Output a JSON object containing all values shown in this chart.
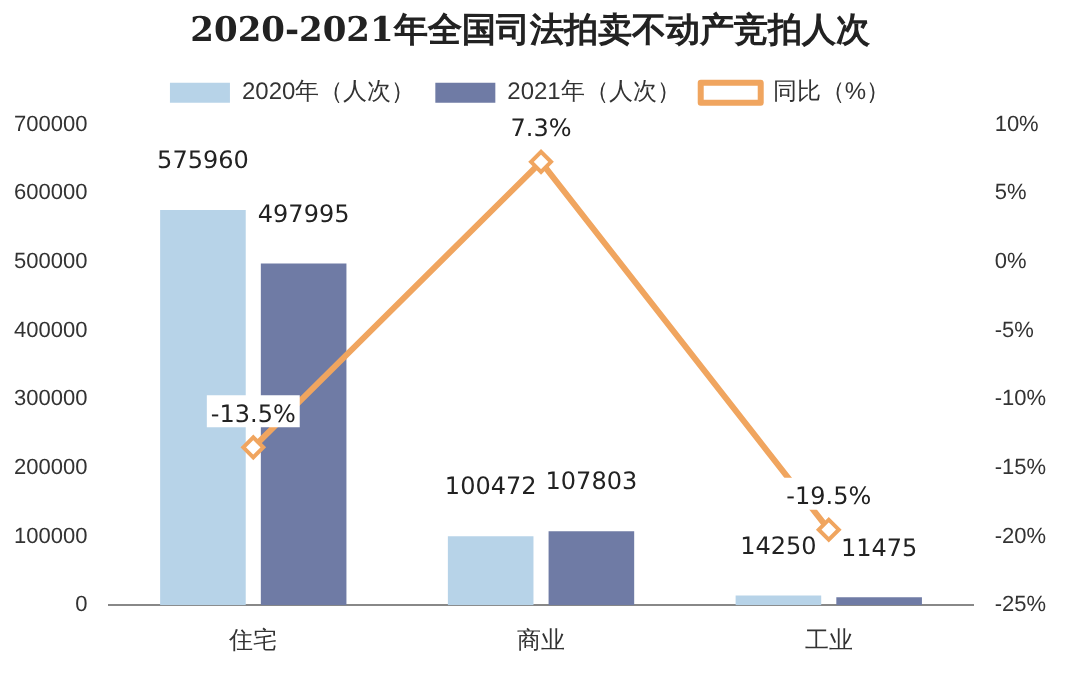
{
  "chart_data": {
    "type": "bar",
    "title": "2020-2021年全国司法拍卖不动产竞拍人次",
    "categories": [
      "住宅",
      "商业",
      "工业"
    ],
    "series": [
      {
        "name": "2020年（人次）",
        "color": "#b7d3e8",
        "values": [
          575960,
          100472,
          14250
        ],
        "value_labels": [
          "575960",
          "100472",
          "14250"
        ]
      },
      {
        "name": "2021年（人次）",
        "color": "#6f7ba5",
        "values": [
          497995,
          107803,
          11475
        ],
        "value_labels": [
          "497995",
          "107803",
          "11475"
        ]
      },
      {
        "name": "同比（%）",
        "type": "line",
        "axis": "y2",
        "color": "#f0a55f",
        "marker": "diamond",
        "values": [
          -13.5,
          7.3,
          -19.5
        ],
        "value_labels": [
          "-13.5%",
          "7.3%",
          "-19.5%"
        ]
      }
    ],
    "ylim": [
      0,
      700000
    ],
    "yticks": [
      0,
      100000,
      200000,
      300000,
      400000,
      500000,
      600000,
      700000
    ],
    "y2lim": [
      -25,
      10
    ],
    "y2ticks": [
      {
        "value": -25,
        "label": "-25%"
      },
      {
        "value": -20,
        "label": "-20%"
      },
      {
        "value": -15,
        "label": "-15%"
      },
      {
        "value": -10,
        "label": "-10%"
      },
      {
        "value": -5,
        "label": "-5%"
      },
      {
        "value": 0,
        "label": "0%"
      },
      {
        "value": 5,
        "label": "5%"
      },
      {
        "value": 10,
        "label": "10%"
      }
    ],
    "legend": "top",
    "grid": false
  }
}
